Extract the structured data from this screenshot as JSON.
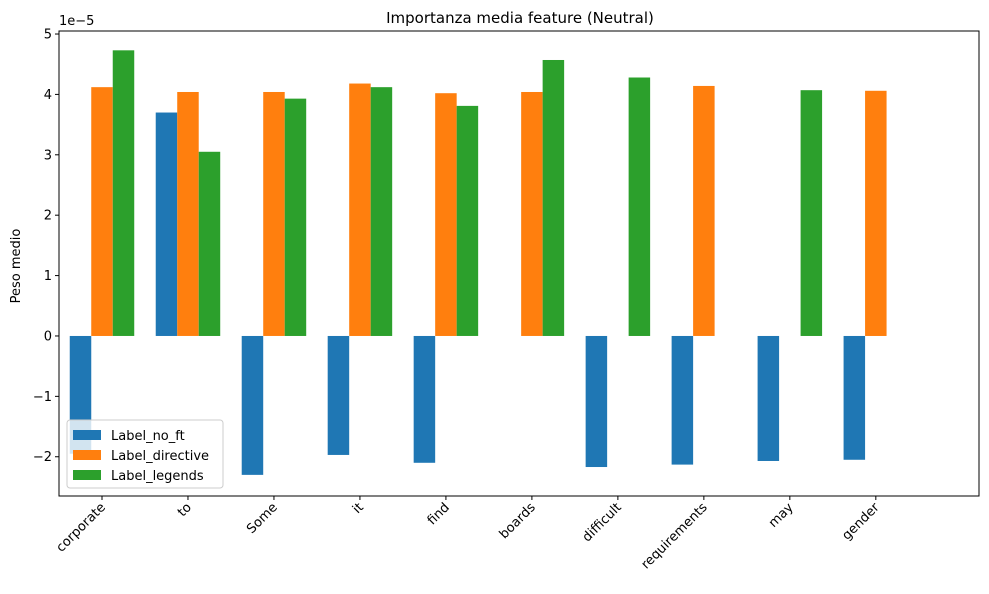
{
  "chart_data": {
    "type": "bar",
    "title": "Importanza media feature (Neutral)",
    "xlabel": "",
    "ylabel": "Peso medio",
    "scale_label": "1e−5",
    "ylim": [
      -2.65,
      5.05
    ],
    "yticks": [
      -2,
      -1,
      0,
      1,
      2,
      3,
      4,
      5
    ],
    "ytick_labels": [
      "−2",
      "−1",
      "0",
      "1",
      "2",
      "3",
      "4",
      "5"
    ],
    "grid": false,
    "legend_position": "lower left",
    "categories": [
      "corporate",
      "to",
      "Some",
      "it",
      "find",
      "boards",
      "difficult",
      "requirements",
      "may",
      "gender"
    ],
    "series": [
      {
        "name": "Label_no_ft",
        "color": "#1f77b4",
        "values": [
          -1.95,
          3.7,
          -2.3,
          -1.97,
          -2.1,
          null,
          -2.17,
          -2.13,
          -2.07,
          -2.05
        ]
      },
      {
        "name": "Label_directive",
        "color": "#ff7f0e",
        "values": [
          4.12,
          4.04,
          4.04,
          4.18,
          4.02,
          4.04,
          null,
          4.14,
          null,
          4.06
        ]
      },
      {
        "name": "Label_legends",
        "color": "#2ca02c",
        "values": [
          4.73,
          3.05,
          3.93,
          4.12,
          3.81,
          4.57,
          4.28,
          null,
          4.07,
          null
        ]
      }
    ]
  }
}
